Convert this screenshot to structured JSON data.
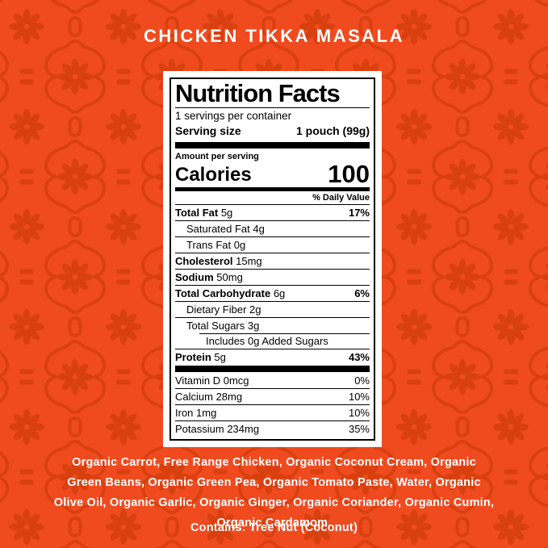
{
  "title": "CHICKEN TIKKA MASALA",
  "colors": {
    "background": "#F04A1F",
    "pattern": "#D9400F",
    "title_text": "#FFFFFF",
    "card_background": "#FFFFFF",
    "label_text": "#000000"
  },
  "nutrition_label": {
    "heading": "Nutrition Facts",
    "servings_per_container": "1 servings per container",
    "serving_size_label": "Serving size",
    "serving_size_value": "1 pouch (99g)",
    "amount_per_serving": "Amount per serving",
    "calories_label": "Calories",
    "calories_value": "100",
    "daily_value_header": "% Daily Value",
    "rows": [
      {
        "name": "Total Fat",
        "amount": "5g",
        "dv": "17%",
        "bold": true
      },
      {
        "name": "Saturated Fat",
        "amount": "4g",
        "dv": "",
        "indent": 1
      },
      {
        "name": "Trans Fat",
        "amount": "0g",
        "dv": "",
        "indent": 1
      },
      {
        "name": "Cholesterol",
        "amount": "15mg",
        "dv": "",
        "bold": true
      },
      {
        "name": "Sodium",
        "amount": "50mg",
        "dv": "",
        "bold": true
      },
      {
        "name": "Total Carbohydrate",
        "amount": "6g",
        "dv": "6%",
        "bold": true
      },
      {
        "name": "Dietary Fiber",
        "amount": "2g",
        "dv": "",
        "indent": 1
      },
      {
        "name": "Total Sugars",
        "amount": "3g",
        "dv": "",
        "indent": 1
      },
      {
        "name": "Includes 0g Added Sugars",
        "amount": "",
        "dv": "",
        "indent": 2,
        "inset_rule": true
      },
      {
        "name": "Protein",
        "amount": "5g",
        "dv": "43%",
        "bold": true
      }
    ],
    "micronutrients": [
      {
        "name": "Vitamin D",
        "amount": "0mcg",
        "dv": "0%"
      },
      {
        "name": "Calcium",
        "amount": "28mg",
        "dv": "10%"
      },
      {
        "name": "Iron",
        "amount": "1mg",
        "dv": "10%"
      },
      {
        "name": "Potassium",
        "amount": "234mg",
        "dv": "35%"
      }
    ]
  },
  "ingredients_lines": [
    "Organic Carrot, Free Range Chicken, Organic Coconut Cream, Organic",
    "Green Beans, Organic Green Pea, Organic Tomato Paste, Water, Organic",
    "Olive Oil, Organic Garlic, Organic Ginger, Organic Coriander, Organic Cumin,",
    "Organic Cardamom."
  ],
  "contains": "Contains: Tree Nut (Coconut)"
}
